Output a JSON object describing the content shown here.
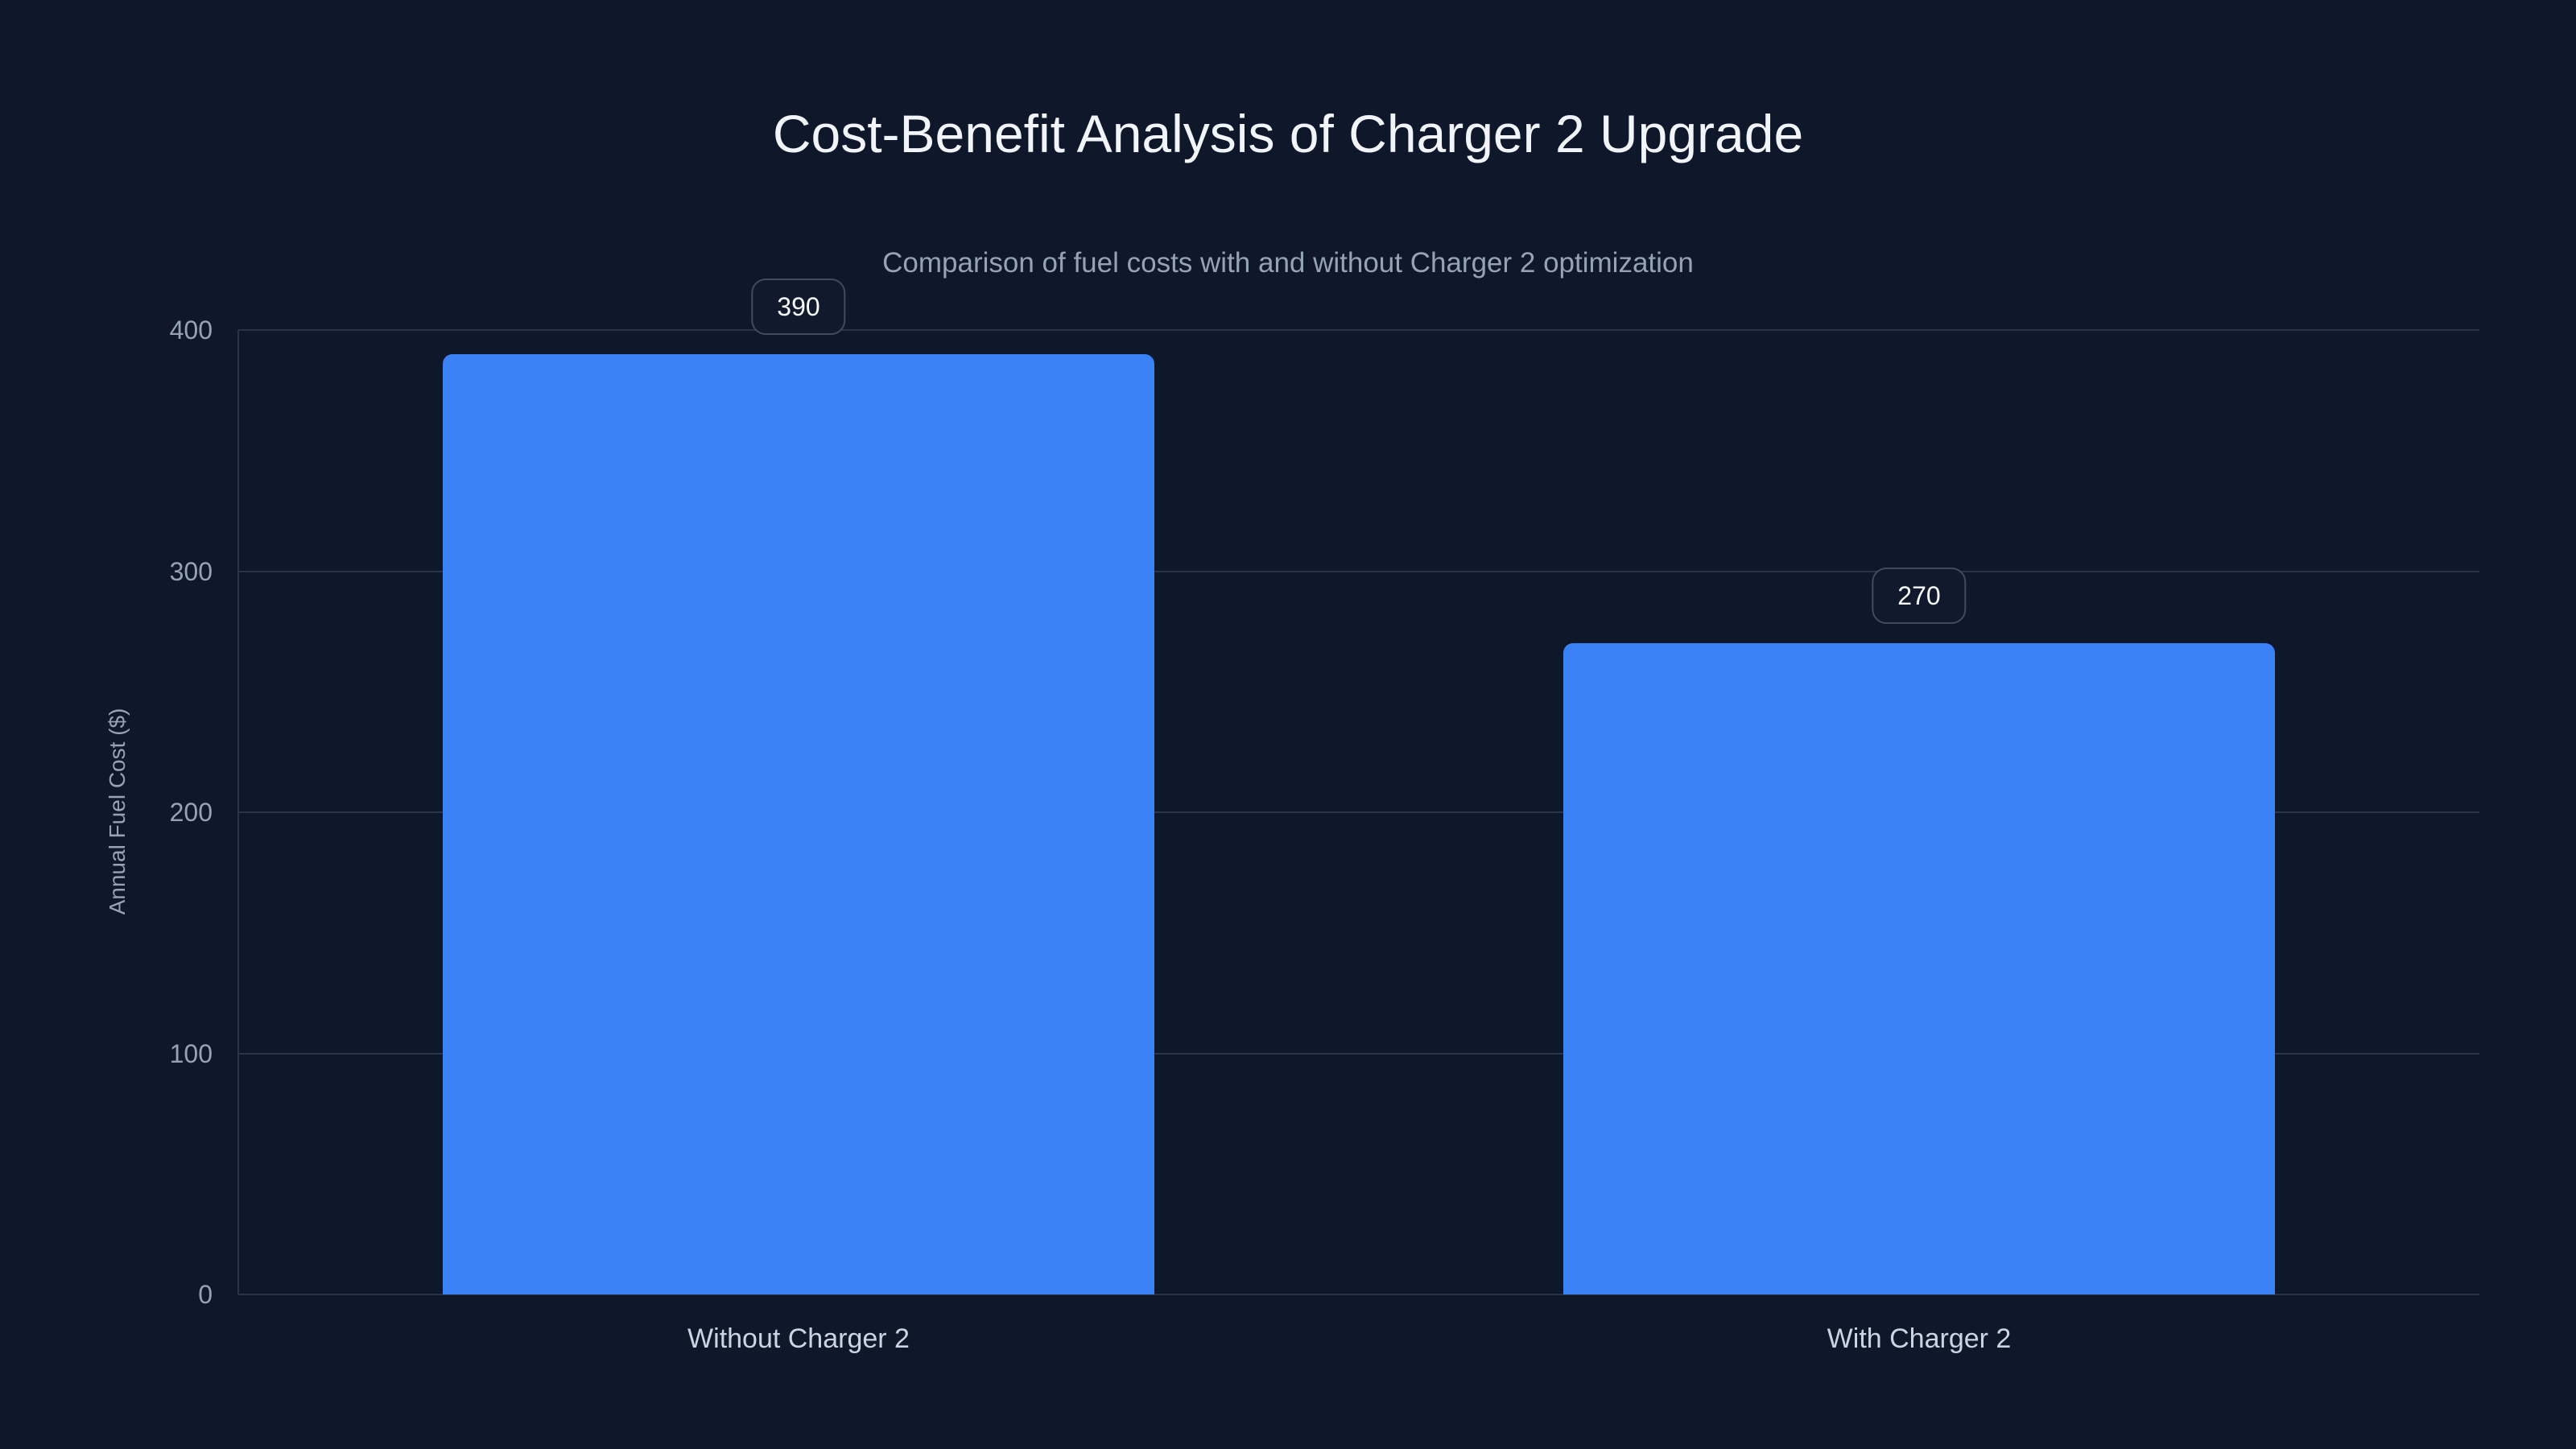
{
  "chart_data": {
    "type": "bar",
    "title": "Cost-Benefit Analysis of Charger 2 Upgrade",
    "subtitle": "Comparison of fuel costs with and without Charger 2 optimization",
    "categories": [
      "Without Charger 2",
      "With Charger 2"
    ],
    "values": [
      390,
      270
    ],
    "data_labels": [
      "390",
      "270"
    ],
    "xlabel": "",
    "ylabel": "Annual Fuel Cost ($)",
    "yticks": [
      0,
      100,
      200,
      300,
      400
    ],
    "ylim": [
      0,
      400
    ],
    "grid": true,
    "legend": false,
    "bar_color": "#3b82f6"
  },
  "colors": {
    "background": "#0f172a",
    "bar": "#3b82f6",
    "gridline": "#2a3349",
    "axis_line": "#2a3349",
    "title_text": "#f1f4f9",
    "subtitle_text": "#94a3b8",
    "tick_text": "#94a3b8",
    "category_text": "#cbd5e1",
    "badge_bg": "#111a2d",
    "badge_border": "#3f4b5f",
    "badge_text": "#f8fafc"
  }
}
